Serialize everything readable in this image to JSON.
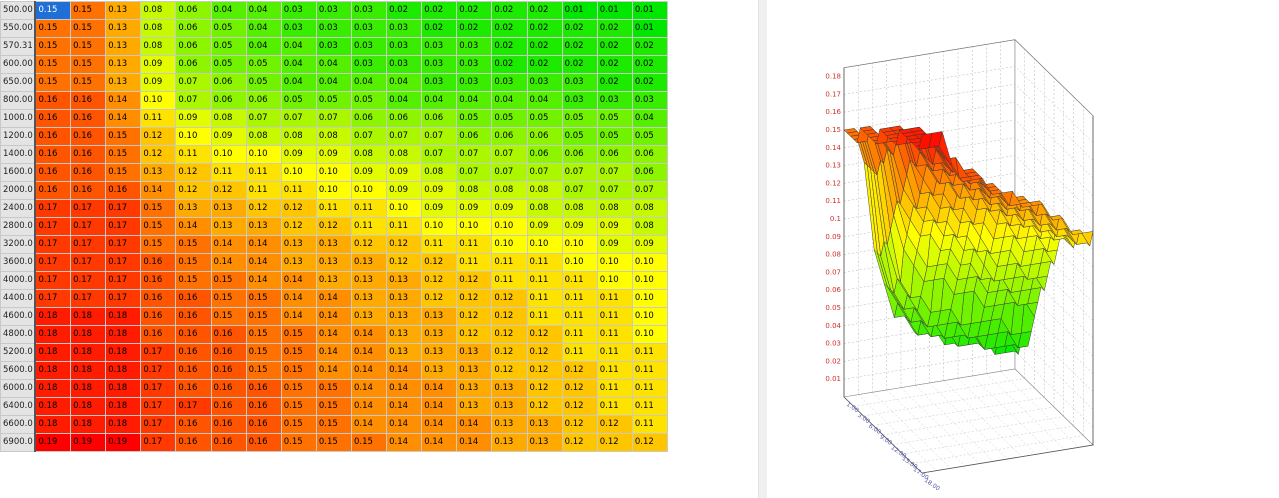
{
  "table": {
    "row_labels": [
      "500.00",
      "550.00",
      "570.31",
      "600.00",
      "650.00",
      "800.00",
      "1000.0",
      "1200.0",
      "1400.0",
      "1600.0",
      "2000.0",
      "2400.0",
      "2800.0",
      "3200.0",
      "3600.0",
      "4000.0",
      "4400.0",
      "4600.0",
      "4800.0",
      "5200.0",
      "5600.0",
      "6000.0",
      "6400.0",
      "6600.0",
      "6900.0"
    ],
    "rows": [
      [
        "0.15",
        "0.15",
        "0.13",
        "0.08",
        "0.06",
        "0.04",
        "0.04",
        "0.03",
        "0.03",
        "0.03",
        "0.02",
        "0.02",
        "0.02",
        "0.02",
        "0.02",
        "0.01",
        "0.01",
        "0.01"
      ],
      [
        "0.15",
        "0.15",
        "0.13",
        "0.08",
        "0.06",
        "0.05",
        "0.04",
        "0.03",
        "0.03",
        "0.03",
        "0.03",
        "0.02",
        "0.02",
        "0.02",
        "0.02",
        "0.02",
        "0.02",
        "0.01"
      ],
      [
        "0.15",
        "0.15",
        "0.13",
        "0.08",
        "0.06",
        "0.05",
        "0.04",
        "0.04",
        "0.03",
        "0.03",
        "0.03",
        "0.03",
        "0.03",
        "0.02",
        "0.02",
        "0.02",
        "0.02",
        "0.02"
      ],
      [
        "0.15",
        "0.15",
        "0.13",
        "0.09",
        "0.06",
        "0.05",
        "0.05",
        "0.04",
        "0.04",
        "0.03",
        "0.03",
        "0.03",
        "0.03",
        "0.02",
        "0.02",
        "0.02",
        "0.02",
        "0.02"
      ],
      [
        "0.15",
        "0.15",
        "0.13",
        "0.09",
        "0.07",
        "0.06",
        "0.05",
        "0.04",
        "0.04",
        "0.04",
        "0.04",
        "0.03",
        "0.03",
        "0.03",
        "0.03",
        "0.03",
        "0.02",
        "0.02"
      ],
      [
        "0.16",
        "0.16",
        "0.14",
        "0.10",
        "0.07",
        "0.06",
        "0.06",
        "0.05",
        "0.05",
        "0.05",
        "0.04",
        "0.04",
        "0.04",
        "0.04",
        "0.04",
        "0.03",
        "0.03",
        "0.03"
      ],
      [
        "0.16",
        "0.16",
        "0.14",
        "0.11",
        "0.09",
        "0.08",
        "0.07",
        "0.07",
        "0.07",
        "0.06",
        "0.06",
        "0.06",
        "0.05",
        "0.05",
        "0.05",
        "0.05",
        "0.05",
        "0.04"
      ],
      [
        "0.16",
        "0.16",
        "0.15",
        "0.12",
        "0.10",
        "0.09",
        "0.08",
        "0.08",
        "0.08",
        "0.07",
        "0.07",
        "0.07",
        "0.06",
        "0.06",
        "0.06",
        "0.05",
        "0.05",
        "0.05"
      ],
      [
        "0.16",
        "0.16",
        "0.15",
        "0.12",
        "0.11",
        "0.10",
        "0.10",
        "0.09",
        "0.09",
        "0.08",
        "0.08",
        "0.07",
        "0.07",
        "0.07",
        "0.06",
        "0.06",
        "0.06",
        "0.06"
      ],
      [
        "0.16",
        "0.16",
        "0.15",
        "0.13",
        "0.12",
        "0.11",
        "0.11",
        "0.10",
        "0.10",
        "0.09",
        "0.09",
        "0.08",
        "0.07",
        "0.07",
        "0.07",
        "0.07",
        "0.07",
        "0.06"
      ],
      [
        "0.16",
        "0.16",
        "0.16",
        "0.14",
        "0.12",
        "0.12",
        "0.11",
        "0.11",
        "0.10",
        "0.10",
        "0.09",
        "0.09",
        "0.08",
        "0.08",
        "0.08",
        "0.07",
        "0.07",
        "0.07"
      ],
      [
        "0.17",
        "0.17",
        "0.17",
        "0.15",
        "0.13",
        "0.13",
        "0.12",
        "0.12",
        "0.11",
        "0.11",
        "0.10",
        "0.09",
        "0.09",
        "0.09",
        "0.08",
        "0.08",
        "0.08",
        "0.08"
      ],
      [
        "0.17",
        "0.17",
        "0.17",
        "0.15",
        "0.14",
        "0.13",
        "0.13",
        "0.12",
        "0.12",
        "0.11",
        "0.11",
        "0.10",
        "0.10",
        "0.10",
        "0.09",
        "0.09",
        "0.09",
        "0.08"
      ],
      [
        "0.17",
        "0.17",
        "0.17",
        "0.15",
        "0.15",
        "0.14",
        "0.14",
        "0.13",
        "0.13",
        "0.12",
        "0.12",
        "0.11",
        "0.11",
        "0.10",
        "0.10",
        "0.10",
        "0.09",
        "0.09"
      ],
      [
        "0.17",
        "0.17",
        "0.17",
        "0.16",
        "0.15",
        "0.14",
        "0.14",
        "0.13",
        "0.13",
        "0.13",
        "0.12",
        "0.12",
        "0.11",
        "0.11",
        "0.11",
        "0.10",
        "0.10",
        "0.10"
      ],
      [
        "0.17",
        "0.17",
        "0.17",
        "0.16",
        "0.15",
        "0.15",
        "0.14",
        "0.14",
        "0.13",
        "0.13",
        "0.13",
        "0.12",
        "0.12",
        "0.11",
        "0.11",
        "0.11",
        "0.10",
        "0.10"
      ],
      [
        "0.17",
        "0.17",
        "0.17",
        "0.16",
        "0.16",
        "0.15",
        "0.15",
        "0.14",
        "0.14",
        "0.13",
        "0.13",
        "0.12",
        "0.12",
        "0.12",
        "0.11",
        "0.11",
        "0.11",
        "0.10"
      ],
      [
        "0.18",
        "0.18",
        "0.18",
        "0.16",
        "0.16",
        "0.15",
        "0.15",
        "0.14",
        "0.14",
        "0.13",
        "0.13",
        "0.13",
        "0.12",
        "0.12",
        "0.11",
        "0.11",
        "0.11",
        "0.10"
      ],
      [
        "0.18",
        "0.18",
        "0.18",
        "0.16",
        "0.16",
        "0.16",
        "0.15",
        "0.15",
        "0.14",
        "0.14",
        "0.13",
        "0.13",
        "0.12",
        "0.12",
        "0.12",
        "0.11",
        "0.11",
        "0.10"
      ],
      [
        "0.18",
        "0.18",
        "0.18",
        "0.17",
        "0.16",
        "0.16",
        "0.15",
        "0.15",
        "0.14",
        "0.14",
        "0.13",
        "0.13",
        "0.13",
        "0.12",
        "0.12",
        "0.11",
        "0.11",
        "0.11"
      ],
      [
        "0.18",
        "0.18",
        "0.18",
        "0.17",
        "0.16",
        "0.16",
        "0.15",
        "0.15",
        "0.14",
        "0.14",
        "0.14",
        "0.13",
        "0.13",
        "0.12",
        "0.12",
        "0.12",
        "0.11",
        "0.11"
      ],
      [
        "0.18",
        "0.18",
        "0.18",
        "0.17",
        "0.16",
        "0.16",
        "0.16",
        "0.15",
        "0.15",
        "0.14",
        "0.14",
        "0.14",
        "0.13",
        "0.13",
        "0.12",
        "0.12",
        "0.11",
        "0.11"
      ],
      [
        "0.18",
        "0.18",
        "0.18",
        "0.17",
        "0.17",
        "0.16",
        "0.16",
        "0.15",
        "0.15",
        "0.14",
        "0.14",
        "0.14",
        "0.13",
        "0.13",
        "0.12",
        "0.12",
        "0.11",
        "0.11"
      ],
      [
        "0.18",
        "0.18",
        "0.18",
        "0.17",
        "0.16",
        "0.16",
        "0.16",
        "0.15",
        "0.15",
        "0.14",
        "0.14",
        "0.14",
        "0.14",
        "0.13",
        "0.13",
        "0.12",
        "0.12",
        "0.11"
      ],
      [
        "0.19",
        "0.19",
        "0.19",
        "0.17",
        "0.16",
        "0.16",
        "0.16",
        "0.15",
        "0.15",
        "0.15",
        "0.14",
        "0.14",
        "0.14",
        "0.13",
        "0.13",
        "0.12",
        "0.12",
        "0.12"
      ]
    ],
    "selected": {
      "row": 0,
      "col": 0
    },
    "color_scale": {
      "low": "#00e800",
      "mid": "#ffff00",
      "high": "#ff0000",
      "min": 0.01,
      "max": 0.19
    }
  },
  "surface_plot": {
    "z_ticks": [
      "0.01",
      "0.02",
      "0.03",
      "0.04",
      "0.05",
      "0.06",
      "0.07",
      "0.08",
      "0.09",
      "0.1",
      "0.11",
      "0.12",
      "0.13",
      "0.14",
      "0.15",
      "0.16",
      "0.17",
      "0.18"
    ],
    "x_ticks_partial": [
      "1.00",
      "3.00",
      "6.00",
      "9.00",
      "12.00",
      "15.00",
      "17.00",
      "18.00"
    ],
    "z_axis_color": "#d0302a",
    "x_axis_color": "#5555a8",
    "y_axis_color": "#4a9a3a"
  }
}
